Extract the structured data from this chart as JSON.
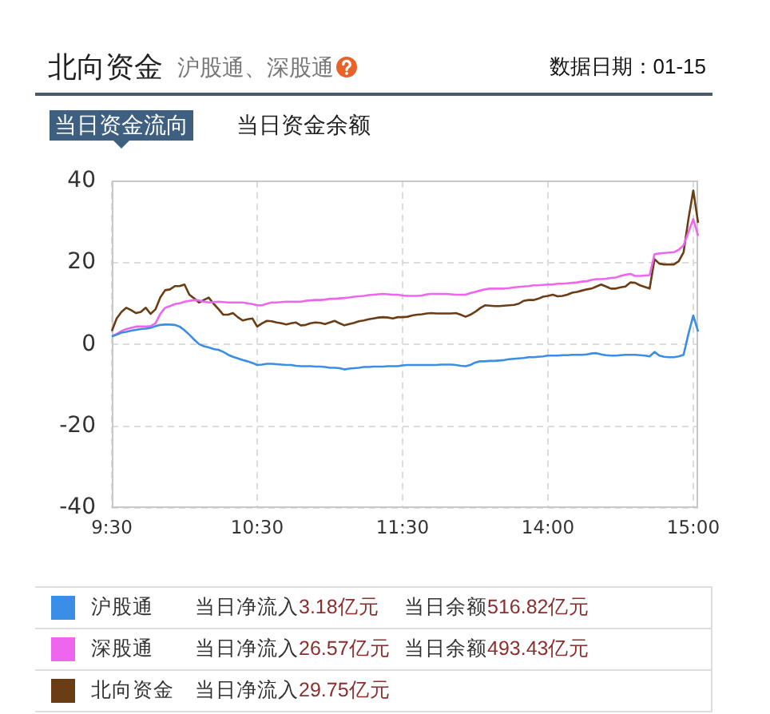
{
  "chart_data": {
    "type": "line",
    "title": "北向资金",
    "subtitle": "沪股通、深股通",
    "annotations": [
      "数据日期：01-15",
      "当日资金流向",
      "当日资金余额",
      "当日净流入3.18亿元",
      "当日余额516.82亿元",
      "当日净流入26.57亿元",
      "当日余额493.43亿元",
      "当日净流入29.75亿元"
    ],
    "categories": [
      "9:30",
      null,
      null,
      null,
      null,
      null,
      null,
      null,
      null,
      null,
      null,
      null,
      null,
      null,
      null,
      null,
      null,
      null,
      null,
      null,
      null,
      null,
      null,
      null,
      null,
      null,
      null,
      null,
      null,
      null,
      "10:30",
      null,
      null,
      null,
      null,
      null,
      null,
      null,
      null,
      null,
      null,
      null,
      null,
      null,
      null,
      null,
      null,
      null,
      null,
      null,
      null,
      null,
      null,
      null,
      null,
      null,
      null,
      null,
      null,
      null,
      "11:30",
      null,
      null,
      null,
      null,
      null,
      null,
      null,
      null,
      null,
      null,
      null,
      null,
      null,
      null,
      null,
      null,
      null,
      null,
      null,
      null,
      null,
      null,
      null,
      null,
      null,
      null,
      null,
      null,
      null,
      "14:00",
      null,
      null,
      null,
      null,
      null,
      null,
      null,
      null,
      null,
      null,
      null,
      null,
      null,
      null,
      null,
      null,
      null,
      null,
      null,
      null,
      null,
      null,
      null,
      null,
      null,
      null,
      null,
      null,
      null,
      "15:00",
      null
    ],
    "ylim": [
      -40,
      40
    ],
    "yticks": [
      -40,
      -20,
      0,
      20,
      40
    ],
    "grid": true,
    "legend": "bottom",
    "series": [
      {
        "name": "沪股通",
        "color": "#3a8ee6",
        "values": [
          2.0,
          2.4,
          2.9,
          3.1,
          3.4,
          3.6,
          3.8,
          3.9,
          4.1,
          4.5,
          4.8,
          4.9,
          4.9,
          4.8,
          4.4,
          3.5,
          2.4,
          1.2,
          0.1,
          -0.4,
          -0.7,
          -1.1,
          -1.3,
          -1.8,
          -2.5,
          -3.0,
          -3.4,
          -3.8,
          -4.1,
          -4.5,
          -5.0,
          -4.9,
          -4.7,
          -4.7,
          -4.8,
          -4.9,
          -5.0,
          -5.0,
          -5.2,
          -5.3,
          -5.3,
          -5.3,
          -5.4,
          -5.4,
          -5.5,
          -5.7,
          -5.7,
          -5.8,
          -6.1,
          -5.9,
          -5.8,
          -5.7,
          -5.5,
          -5.5,
          -5.4,
          -5.4,
          -5.4,
          -5.3,
          -5.3,
          -5.3,
          -5.1,
          -5.0,
          -5.0,
          -5.0,
          -5.0,
          -5.0,
          -5.0,
          -5.0,
          -4.9,
          -4.9,
          -4.9,
          -5.0,
          -5.2,
          -5.3,
          -5.0,
          -4.4,
          -4.1,
          -4.1,
          -4.0,
          -4.0,
          -3.9,
          -3.8,
          -3.6,
          -3.5,
          -3.4,
          -3.3,
          -3.1,
          -3.1,
          -3.0,
          -2.9,
          -2.7,
          -2.7,
          -2.7,
          -2.6,
          -2.6,
          -2.5,
          -2.5,
          -2.5,
          -2.4,
          -2.2,
          -2.1,
          -2.4,
          -2.6,
          -2.7,
          -2.7,
          -2.6,
          -2.5,
          -2.5,
          -2.5,
          -2.6,
          -2.7,
          -2.9,
          -1.8,
          -2.7,
          -3.0,
          -3.1,
          -3.1,
          -2.9,
          -2.5,
          2.6,
          7.1,
          3.2
        ]
      },
      {
        "name": "深股通",
        "color": "#ee66ee",
        "values": [
          2.0,
          2.6,
          3.3,
          3.8,
          4.1,
          4.4,
          4.4,
          4.4,
          4.5,
          5.2,
          7.5,
          9.0,
          9.4,
          9.9,
          10.1,
          10.5,
          10.7,
          10.9,
          10.8,
          10.5,
          10.3,
          10.4,
          10.5,
          10.4,
          10.3,
          10.3,
          10.3,
          10.3,
          10.1,
          9.9,
          9.6,
          9.6,
          10.0,
          10.3,
          10.3,
          10.4,
          10.5,
          10.5,
          10.5,
          10.5,
          10.7,
          10.8,
          10.9,
          10.9,
          11.0,
          11.2,
          11.2,
          11.3,
          11.4,
          11.5,
          11.7,
          11.8,
          11.9,
          12.1,
          12.2,
          12.3,
          12.4,
          12.3,
          12.2,
          12.2,
          12.0,
          11.9,
          11.9,
          11.9,
          12.0,
          12.3,
          12.4,
          12.4,
          12.4,
          12.4,
          12.3,
          12.2,
          12.2,
          12.2,
          12.6,
          12.9,
          13.2,
          13.5,
          13.7,
          13.7,
          13.7,
          13.7,
          13.8,
          14.0,
          14.1,
          14.2,
          14.3,
          14.5,
          14.5,
          14.6,
          14.7,
          14.7,
          14.9,
          14.9,
          15.0,
          15.1,
          15.2,
          15.4,
          15.5,
          15.8,
          16.0,
          16.0,
          16.1,
          16.3,
          16.4,
          16.8,
          17.1,
          17.3,
          16.8,
          16.8,
          16.9,
          17.0,
          22.1,
          22.3,
          22.4,
          22.5,
          22.6,
          23.2,
          24.3,
          27.5,
          30.7,
          26.6
        ]
      },
      {
        "name": "北向资金",
        "color": "#6b3d14",
        "values": [
          3.3,
          6.4,
          8.0,
          9.0,
          8.4,
          7.7,
          8.0,
          9.0,
          7.5,
          8.6,
          11.5,
          13.3,
          13.5,
          14.3,
          14.3,
          14.7,
          12.2,
          11.3,
          10.3,
          10.9,
          11.5,
          10.0,
          8.7,
          7.3,
          7.3,
          7.7,
          6.7,
          5.9,
          6.2,
          6.4,
          4.4,
          5.2,
          5.8,
          5.7,
          5.4,
          5.2,
          4.9,
          5.2,
          5.4,
          4.7,
          4.8,
          5.2,
          5.4,
          5.3,
          5.0,
          5.4,
          5.8,
          5.2,
          4.7,
          5.0,
          5.3,
          5.7,
          5.9,
          6.2,
          6.4,
          6.6,
          6.7,
          6.6,
          6.4,
          6.7,
          6.7,
          6.8,
          7.1,
          7.3,
          7.4,
          7.6,
          7.7,
          7.6,
          7.6,
          7.6,
          7.6,
          7.7,
          7.3,
          6.8,
          7.3,
          8.0,
          8.9,
          9.6,
          9.5,
          9.4,
          9.4,
          9.5,
          9.6,
          9.7,
          10.0,
          10.7,
          10.9,
          10.9,
          11.2,
          11.7,
          11.9,
          12.2,
          11.8,
          11.9,
          12.2,
          12.7,
          12.9,
          13.2,
          13.5,
          13.7,
          14.2,
          14.7,
          14.2,
          13.7,
          13.7,
          14.0,
          14.2,
          15.2,
          15.1,
          14.5,
          14.1,
          13.7,
          20.9,
          19.8,
          19.6,
          19.6,
          19.6,
          20.4,
          22.6,
          30.7,
          37.7,
          29.8
        ]
      }
    ]
  }
}
